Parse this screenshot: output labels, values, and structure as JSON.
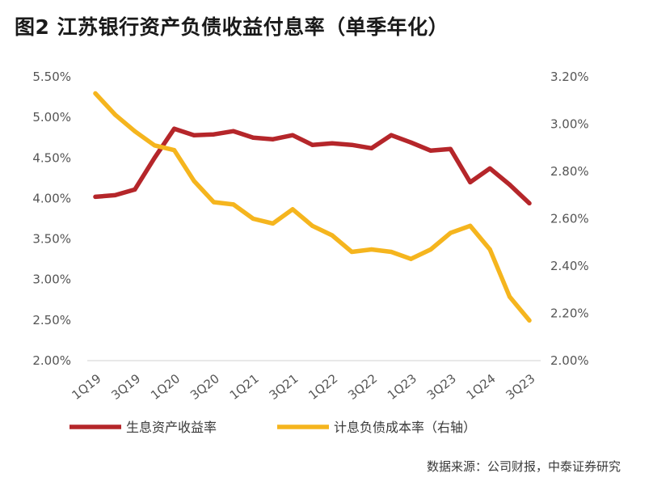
{
  "title": "图2  江苏银行资产负债收益付息率（单季年化）",
  "source": "数据来源：公司财报，中泰证券研究",
  "chart_data": {
    "type": "line",
    "title": "图2  江苏银行资产负债收益付息率（单季年化）",
    "categories": [
      "1Q19",
      "2Q19",
      "3Q19",
      "4Q19",
      "1Q20",
      "2Q20",
      "3Q20",
      "4Q20",
      "1Q21",
      "2Q21",
      "3Q21",
      "4Q21",
      "1Q22",
      "2Q22",
      "3Q22",
      "4Q22",
      "1Q23",
      "2Q23",
      "3Q23",
      "4Q23",
      "1Q24",
      "2Q24",
      "3Q23"
    ],
    "x_tick_labels": [
      "1Q19",
      "3Q19",
      "1Q20",
      "3Q20",
      "1Q21",
      "3Q21",
      "1Q22",
      "3Q22",
      "1Q23",
      "3Q23",
      "1Q24",
      "3Q23"
    ],
    "y_left": {
      "ticks": [
        "2.00%",
        "2.50%",
        "3.00%",
        "3.50%",
        "4.00%",
        "4.50%",
        "5.00%",
        "5.50%"
      ],
      "lim": [
        2.0,
        5.5
      ]
    },
    "y_right": {
      "ticks": [
        "2.00%",
        "2.20%",
        "2.40%",
        "2.60%",
        "2.80%",
        "3.00%",
        "3.20%"
      ],
      "lim": [
        2.0,
        3.2
      ]
    },
    "series": [
      {
        "name": "生息资产收益率",
        "axis": "left",
        "color": "#B5262A",
        "values": [
          4.02,
          4.04,
          4.11,
          4.5,
          4.86,
          4.78,
          4.79,
          4.83,
          4.75,
          4.73,
          4.78,
          4.66,
          4.68,
          4.66,
          4.62,
          4.78,
          4.69,
          4.59,
          4.61,
          4.2,
          4.37,
          4.17,
          3.94
        ]
      },
      {
        "name": "计息负债成本率（右轴）",
        "axis": "right",
        "color": "#F5B51E",
        "values": [
          3.13,
          3.04,
          2.97,
          2.91,
          2.89,
          2.76,
          2.67,
          2.66,
          2.6,
          2.58,
          2.64,
          2.57,
          2.53,
          2.46,
          2.47,
          2.46,
          2.43,
          2.47,
          2.54,
          2.57,
          2.47,
          2.27,
          2.17
        ]
      }
    ],
    "legend": [
      "生息资产收益率",
      "计息负债成本率（右轴）"
    ],
    "legend_position": "bottom"
  }
}
